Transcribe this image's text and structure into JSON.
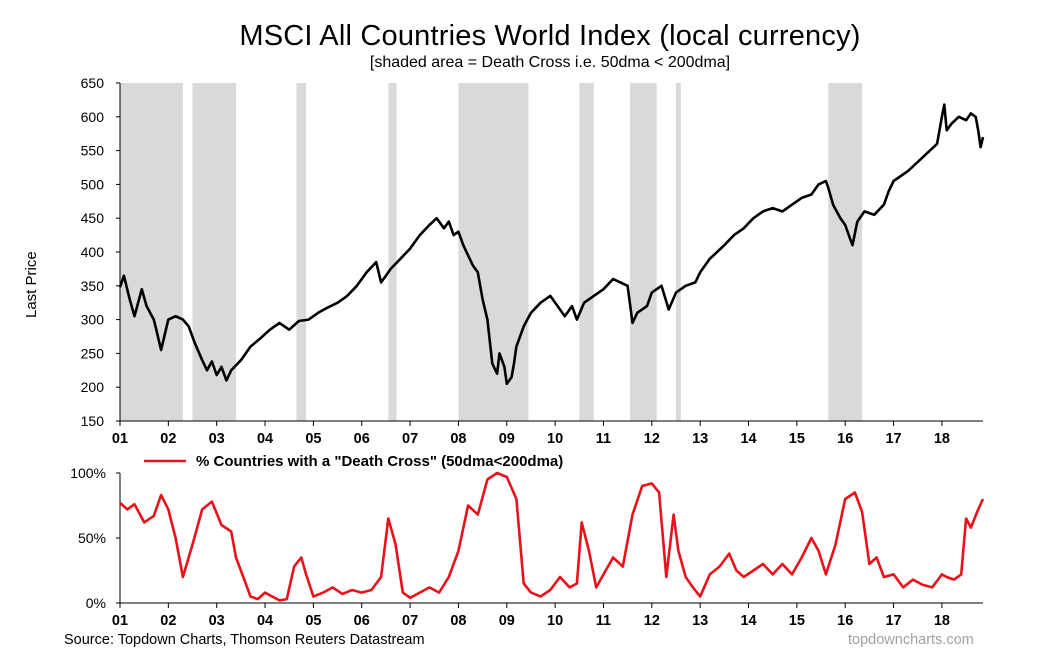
{
  "title": "MSCI All Countries World Index (local currency)",
  "subtitle": "[shaded area = Death Cross i.e. 50dma < 200dma]",
  "source": "Source: Topdown Charts, Thomson Reuters Datastream",
  "watermark": "topdowncharts.com",
  "colors": {
    "price": "#000000",
    "death_cross": "#e8121b",
    "shade": "#d9d9d9",
    "axis": "#000000"
  },
  "chart_data": [
    {
      "type": "line",
      "ylabel": "Last Price",
      "ylim": [
        150,
        650
      ],
      "yticks": [
        "650",
        "600",
        "550",
        "500",
        "450",
        "400",
        "350",
        "300",
        "250",
        "200",
        "150"
      ],
      "xlim": [
        2001.0,
        2018.85
      ],
      "xticks": [
        "01",
        "02",
        "03",
        "04",
        "05",
        "06",
        "07",
        "08",
        "09",
        "10",
        "11",
        "12",
        "13",
        "14",
        "15",
        "16",
        "17",
        "18"
      ],
      "shaded_periods": [
        [
          2001.0,
          2002.3
        ],
        [
          2002.5,
          2003.4
        ],
        [
          2004.65,
          2004.85
        ],
        [
          2006.55,
          2006.72
        ],
        [
          2008.0,
          2009.45
        ],
        [
          2010.5,
          2010.8
        ],
        [
          2011.55,
          2012.1
        ],
        [
          2012.5,
          2012.6
        ],
        [
          2015.65,
          2016.35
        ]
      ],
      "series": [
        {
          "x": [
            2001.0,
            2001.08,
            2001.2,
            2001.3,
            2001.45,
            2001.55,
            2001.7,
            2001.75,
            2001.85,
            2002.0,
            2002.15,
            2002.3,
            2002.42,
            2002.55,
            2002.7,
            2002.8,
            2002.9,
            2003.0,
            2003.1,
            2003.2,
            2003.3,
            2003.5,
            2003.7,
            2003.9,
            2004.1,
            2004.3,
            2004.5,
            2004.7,
            2004.9,
            2005.1,
            2005.3,
            2005.5,
            2005.7,
            2005.9,
            2006.1,
            2006.3,
            2006.4,
            2006.5,
            2006.6,
            2006.8,
            2007.0,
            2007.2,
            2007.4,
            2007.55,
            2007.7,
            2007.8,
            2007.9,
            2008.0,
            2008.1,
            2008.2,
            2008.3,
            2008.4,
            2008.5,
            2008.6,
            2008.7,
            2008.8,
            2008.85,
            2008.95,
            2009.0,
            2009.1,
            2009.15,
            2009.2,
            2009.35,
            2009.5,
            2009.7,
            2009.9,
            2010.1,
            2010.2,
            2010.35,
            2010.45,
            2010.6,
            2010.8,
            2011.0,
            2011.2,
            2011.35,
            2011.5,
            2011.6,
            2011.7,
            2011.9,
            2012.0,
            2012.2,
            2012.35,
            2012.5,
            2012.7,
            2012.9,
            2013.0,
            2013.2,
            2013.35,
            2013.5,
            2013.7,
            2013.9,
            2014.1,
            2014.3,
            2014.5,
            2014.7,
            2014.9,
            2015.1,
            2015.3,
            2015.45,
            2015.6,
            2015.65,
            2015.75,
            2015.9,
            2016.0,
            2016.1,
            2016.15,
            2016.25,
            2016.4,
            2016.6,
            2016.8,
            2016.9,
            2017.0,
            2017.3,
            2017.6,
            2017.9,
            2018.0,
            2018.05,
            2018.1,
            2018.2,
            2018.35,
            2018.5,
            2018.6,
            2018.7,
            2018.75,
            2018.8,
            2018.85
          ],
          "y": [
            348,
            365,
            330,
            305,
            345,
            320,
            300,
            285,
            255,
            300,
            305,
            300,
            290,
            265,
            240,
            225,
            238,
            218,
            230,
            210,
            225,
            240,
            260,
            272,
            285,
            295,
            285,
            298,
            300,
            310,
            318,
            325,
            335,
            350,
            370,
            385,
            355,
            365,
            375,
            390,
            405,
            425,
            440,
            450,
            435,
            445,
            425,
            430,
            410,
            395,
            380,
            370,
            330,
            300,
            235,
            220,
            250,
            230,
            205,
            215,
            235,
            260,
            290,
            310,
            325,
            335,
            315,
            305,
            320,
            300,
            325,
            335,
            345,
            360,
            355,
            350,
            295,
            310,
            320,
            340,
            350,
            315,
            340,
            350,
            355,
            370,
            390,
            400,
            410,
            425,
            435,
            450,
            460,
            465,
            460,
            470,
            480,
            485,
            500,
            505,
            495,
            470,
            450,
            440,
            420,
            410,
            445,
            460,
            455,
            470,
            490,
            505,
            520,
            540,
            560,
            600,
            618,
            580,
            590,
            600,
            595,
            605,
            600,
            580,
            555,
            570
          ],
          "name": ""
        }
      ]
    },
    {
      "type": "line",
      "ylim": [
        0,
        100
      ],
      "yticks": [
        "100%",
        "50%",
        "0%"
      ],
      "xlim": [
        2001.0,
        2018.85
      ],
      "xticks": [
        "01",
        "02",
        "03",
        "04",
        "05",
        "06",
        "07",
        "08",
        "09",
        "10",
        "11",
        "12",
        "13",
        "14",
        "15",
        "16",
        "17",
        "18"
      ],
      "legend": "% Countries with a \"Death Cross\" (50dma<200dma)",
      "series": [
        {
          "name": "% Countries with a \"Death Cross\" (50dma<200dma)",
          "x": [
            2001.0,
            2001.15,
            2001.3,
            2001.5,
            2001.7,
            2001.85,
            2002.0,
            2002.15,
            2002.3,
            2002.5,
            2002.7,
            2002.9,
            2003.1,
            2003.3,
            2003.4,
            2003.55,
            2003.7,
            2003.85,
            2004.0,
            2004.2,
            2004.3,
            2004.45,
            2004.6,
            2004.75,
            2004.85,
            2005.0,
            2005.2,
            2005.4,
            2005.6,
            2005.8,
            2006.0,
            2006.2,
            2006.4,
            2006.55,
            2006.7,
            2006.85,
            2007.0,
            2007.2,
            2007.4,
            2007.6,
            2007.8,
            2008.0,
            2008.2,
            2008.4,
            2008.6,
            2008.8,
            2009.0,
            2009.2,
            2009.35,
            2009.5,
            2009.7,
            2009.9,
            2010.1,
            2010.3,
            2010.45,
            2010.55,
            2010.7,
            2010.85,
            2011.0,
            2011.2,
            2011.4,
            2011.6,
            2011.8,
            2012.0,
            2012.15,
            2012.3,
            2012.45,
            2012.55,
            2012.7,
            2012.85,
            2013.0,
            2013.2,
            2013.4,
            2013.6,
            2013.75,
            2013.9,
            2014.1,
            2014.3,
            2014.5,
            2014.7,
            2014.9,
            2015.1,
            2015.3,
            2015.45,
            2015.6,
            2015.8,
            2016.0,
            2016.2,
            2016.35,
            2016.5,
            2016.65,
            2016.8,
            2017.0,
            2017.2,
            2017.4,
            2017.6,
            2017.8,
            2018.0,
            2018.1,
            2018.25,
            2018.4,
            2018.5,
            2018.6,
            2018.75,
            2018.85
          ],
          "y": [
            77,
            72,
            76,
            62,
            67,
            83,
            72,
            50,
            20,
            45,
            72,
            78,
            60,
            55,
            35,
            20,
            5,
            3,
            8,
            4,
            2,
            3,
            28,
            35,
            22,
            5,
            8,
            12,
            7,
            10,
            8,
            10,
            20,
            65,
            45,
            8,
            4,
            8,
            12,
            8,
            20,
            40,
            75,
            68,
            95,
            100,
            97,
            80,
            15,
            8,
            5,
            10,
            20,
            12,
            15,
            62,
            40,
            12,
            22,
            35,
            28,
            68,
            90,
            92,
            85,
            20,
            68,
            40,
            20,
            12,
            5,
            22,
            28,
            38,
            25,
            20,
            25,
            30,
            22,
            30,
            22,
            35,
            50,
            40,
            22,
            45,
            80,
            85,
            70,
            30,
            35,
            20,
            22,
            12,
            18,
            14,
            12,
            22,
            20,
            18,
            22,
            65,
            58,
            72,
            80
          ]
        }
      ]
    }
  ]
}
